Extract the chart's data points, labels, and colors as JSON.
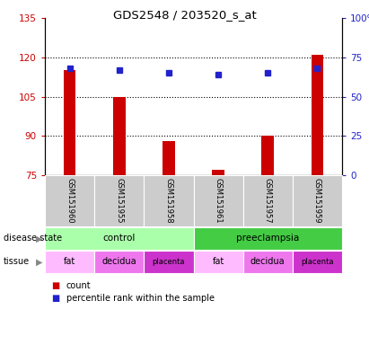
{
  "title": "GDS2548 / 203520_s_at",
  "samples": [
    "GSM151960",
    "GSM151955",
    "GSM151958",
    "GSM151961",
    "GSM151957",
    "GSM151959"
  ],
  "counts": [
    115,
    105,
    88,
    77,
    90,
    121
  ],
  "percentile_ranks": [
    68,
    67,
    65,
    64,
    65,
    68
  ],
  "ylim_left": [
    75,
    135
  ],
  "ylim_right": [
    0,
    100
  ],
  "yticks_left": [
    75,
    90,
    105,
    120,
    135
  ],
  "yticks_right": [
    0,
    25,
    50,
    75,
    100
  ],
  "bar_color": "#cc0000",
  "dot_color": "#0000cc",
  "disease_state": [
    {
      "label": "control",
      "span": [
        0,
        3
      ],
      "color": "#bbffbb"
    },
    {
      "label": "preeclampsia",
      "span": [
        3,
        6
      ],
      "color": "#44dd44"
    }
  ],
  "tissue": [
    {
      "label": "fat",
      "span": [
        0,
        1
      ],
      "color": "#ffbbff"
    },
    {
      "label": "decidua",
      "span": [
        1,
        2
      ],
      "color": "#ee77ee"
    },
    {
      "label": "placenta",
      "span": [
        2,
        3
      ],
      "color": "#cc33cc"
    },
    {
      "label": "fat",
      "span": [
        3,
        4
      ],
      "color": "#ffbbff"
    },
    {
      "label": "decidua",
      "span": [
        4,
        5
      ],
      "color": "#ee77ee"
    },
    {
      "label": "placenta",
      "span": [
        5,
        6
      ],
      "color": "#cc33cc"
    }
  ],
  "bar_color_red": "#cc0000",
  "dot_color_blue": "#2222cc",
  "grid_color": "#000000",
  "header_bg": "#cccccc",
  "control_color": "#aaffaa",
  "preeclampsia_color": "#44cc44"
}
